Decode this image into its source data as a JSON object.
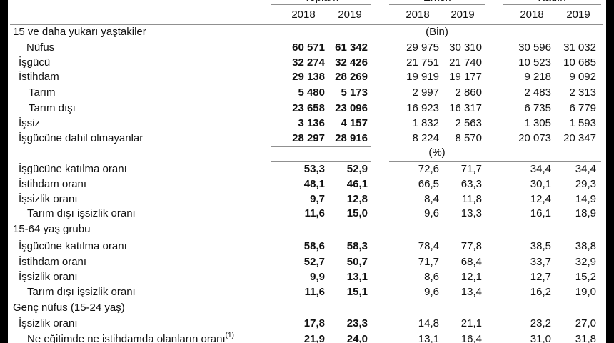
{
  "header": {
    "groups": [
      "Toplam",
      "Erkek",
      "Kadın"
    ],
    "years": [
      "2018",
      "2019",
      "2018",
      "2019",
      "2018",
      "2019"
    ]
  },
  "table": {
    "rows": [
      {
        "label": "15 ve daha yukarı yaştakiler",
        "unit": "(Bin)"
      },
      {
        "label": "Nüfus",
        "values": [
          "60 571",
          "61 342",
          "29 975",
          "30 310",
          "30 596",
          "31 032"
        ]
      },
      {
        "label": "İşgücü",
        "values": [
          "32 274",
          "32 426",
          "21 751",
          "21 740",
          "10 523",
          "10 685"
        ]
      },
      {
        "label": "İstihdam",
        "values": [
          "29 138",
          "28 269",
          "19 919",
          "19 177",
          "9 218",
          "9 092"
        ]
      },
      {
        "label": "Tarım",
        "values": [
          "5 480",
          "5 173",
          "2 997",
          "2 860",
          "2 483",
          "2 313"
        ]
      },
      {
        "label": "Tarım dışı",
        "values": [
          "23 658",
          "23 096",
          "16 923",
          "16 317",
          "6 735",
          "6 779"
        ]
      },
      {
        "label": "İşsiz",
        "values": [
          "3 136",
          "4 157",
          "1 832",
          "2 563",
          "1 305",
          "1 593"
        ]
      },
      {
        "label": "İşgücüne dahil olmayanlar",
        "values": [
          "28 297",
          "28 916",
          "8 224",
          "8 570",
          "20 073",
          "20 347"
        ]
      },
      {
        "unit": "(%)"
      },
      {
        "label": "İşgücüne katılma oranı",
        "values": [
          "53,3",
          "52,9",
          "72,6",
          "71,7",
          "34,4",
          "34,4"
        ]
      },
      {
        "label": "İstihdam oranı",
        "values": [
          "48,1",
          "46,1",
          "66,5",
          "63,3",
          "30,1",
          "29,3"
        ]
      },
      {
        "label": "İşsizlik oranı",
        "values": [
          "9,7",
          "12,8",
          "8,4",
          "11,8",
          "12,4",
          "14,9"
        ]
      },
      {
        "label": "Tarım dışı işsizlik oranı",
        "values": [
          "11,6",
          "15,0",
          "9,6",
          "13,3",
          "16,1",
          "18,9"
        ]
      },
      {
        "label": "15-64 yaş grubu"
      },
      {
        "label": "İşgücüne katılma oranı",
        "values": [
          "58,6",
          "58,3",
          "78,4",
          "77,8",
          "38,5",
          "38,8"
        ]
      },
      {
        "label": "İstihdam oranı",
        "values": [
          "52,7",
          "50,7",
          "71,7",
          "68,4",
          "33,7",
          "32,9"
        ]
      },
      {
        "label": "İşsizlik oranı",
        "values": [
          "9,9",
          "13,1",
          "8,6",
          "12,1",
          "12,7",
          "15,2"
        ]
      },
      {
        "label": "Tarım dışı işsizlik oranı",
        "values": [
          "11,6",
          "15,1",
          "9,6",
          "13,4",
          "16,2",
          "19,0"
        ]
      },
      {
        "label": "Genç nüfus (15-24 yaş)"
      },
      {
        "label": "İşsizlik oranı",
        "values": [
          "17,8",
          "23,3",
          "14,8",
          "21,1",
          "23,2",
          "27,0"
        ]
      },
      {
        "label": "Ne eğitimde ne istihdamda olanların oranı",
        "note": "(1)",
        "values": [
          "21,9",
          "24,0",
          "13,1",
          "16,4",
          "31,0",
          "31,8"
        ]
      }
    ]
  }
}
